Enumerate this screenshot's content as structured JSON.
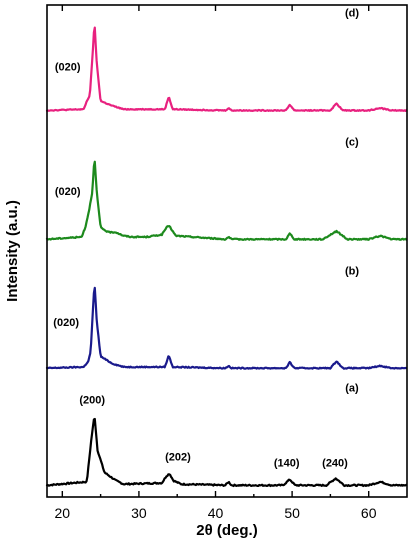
{
  "chart_data": {
    "type": "line",
    "xlabel": "2θ (deg.)",
    "ylabel": "Intensity (a.u.)",
    "xlim": [
      18,
      65
    ],
    "xticks": [
      20,
      30,
      40,
      50,
      60
    ],
    "y_ticks_shown": false,
    "grid": false,
    "legend": "none",
    "series": [
      {
        "label": "(a)",
        "color": "#000000",
        "baseline": 0,
        "noise": 0.6,
        "points": [
          [
            18,
            0
          ],
          [
            23.2,
            3
          ],
          [
            23.8,
            40
          ],
          [
            24.2,
            60
          ],
          [
            24.6,
            30
          ],
          [
            25.5,
            11
          ],
          [
            27,
            4
          ],
          [
            28,
            1
          ],
          [
            33.0,
            2
          ],
          [
            33.6,
            8
          ],
          [
            34.0,
            10
          ],
          [
            34.5,
            4
          ],
          [
            35.5,
            1
          ],
          [
            41.3,
            0
          ],
          [
            41.7,
            3
          ],
          [
            42.1,
            0
          ],
          [
            48.8,
            0
          ],
          [
            49.7,
            5
          ],
          [
            50.4,
            0
          ],
          [
            54.5,
            0
          ],
          [
            55.7,
            6
          ],
          [
            56.8,
            0
          ],
          [
            60,
            0
          ],
          [
            61.5,
            3
          ],
          [
            63,
            0
          ],
          [
            65,
            0
          ]
        ],
        "annotations": [
          {
            "text": "(200)",
            "x": 23.9,
            "y": 70
          },
          {
            "text": "(202)",
            "x": 35.1,
            "y": 21
          },
          {
            "text": "(140)",
            "x": 49.3,
            "y": 16
          },
          {
            "text": "(240)",
            "x": 55.6,
            "y": 16
          }
        ]
      },
      {
        "label": "(b)",
        "color": "#1a1a8c",
        "baseline": 100,
        "noise": 0.45,
        "points": [
          [
            18,
            0
          ],
          [
            22.8,
            1
          ],
          [
            23.4,
            6
          ],
          [
            23.7,
            14
          ],
          [
            24.0,
            50
          ],
          [
            24.2,
            73
          ],
          [
            24.5,
            40
          ],
          [
            25.0,
            10
          ],
          [
            26.5,
            4
          ],
          [
            28,
            1
          ],
          [
            33.4,
            1
          ],
          [
            33.9,
            11
          ],
          [
            34.4,
            1
          ],
          [
            41.3,
            0
          ],
          [
            41.7,
            2
          ],
          [
            42.1,
            0
          ],
          [
            49.2,
            0
          ],
          [
            49.7,
            5
          ],
          [
            50.3,
            0
          ],
          [
            55.0,
            0
          ],
          [
            55.8,
            6
          ],
          [
            56.6,
            0
          ],
          [
            60,
            0
          ],
          [
            61.5,
            2
          ],
          [
            63,
            0
          ],
          [
            65,
            0
          ]
        ],
        "annotations": [
          {
            "text": "(020)",
            "x": 20.5,
            "y": 36
          }
        ]
      },
      {
        "label": "(c)",
        "color": "#1d8a1d",
        "baseline": 210,
        "noise": 0.5,
        "points": [
          [
            18,
            0
          ],
          [
            22.5,
            2
          ],
          [
            23.0,
            10
          ],
          [
            23.5,
            25
          ],
          [
            23.9,
            40
          ],
          [
            24.2,
            70
          ],
          [
            24.5,
            40
          ],
          [
            25.0,
            10
          ],
          [
            26.0,
            6
          ],
          [
            27.0,
            6
          ],
          [
            28.0,
            3
          ],
          [
            29,
            2
          ],
          [
            31,
            2
          ],
          [
            33.0,
            4
          ],
          [
            33.5,
            9
          ],
          [
            33.9,
            12
          ],
          [
            34.3,
            8
          ],
          [
            34.8,
            3
          ],
          [
            41.3,
            0
          ],
          [
            41.7,
            2
          ],
          [
            42.1,
            0
          ],
          [
            49.2,
            0
          ],
          [
            49.7,
            5
          ],
          [
            50.3,
            0
          ],
          [
            54,
            0
          ],
          [
            55.8,
            7
          ],
          [
            57.2,
            0
          ],
          [
            60,
            0
          ],
          [
            61.5,
            3
          ],
          [
            63,
            0
          ],
          [
            65,
            0
          ]
        ],
        "annotations": [
          {
            "text": "(020)",
            "x": 20.7,
            "y": 38
          }
        ]
      },
      {
        "label": "(d)",
        "color": "#e8217f",
        "baseline": 320,
        "noise": 0.4,
        "points": [
          [
            18,
            0
          ],
          [
            22.8,
            1
          ],
          [
            23.2,
            8
          ],
          [
            23.6,
            13
          ],
          [
            24.0,
            53
          ],
          [
            24.2,
            75
          ],
          [
            24.5,
            40
          ],
          [
            25.0,
            8
          ],
          [
            26.5,
            4
          ],
          [
            28,
            1
          ],
          [
            33.4,
            1
          ],
          [
            33.9,
            12
          ],
          [
            34.4,
            1
          ],
          [
            41.3,
            0
          ],
          [
            41.7,
            2
          ],
          [
            42.1,
            0
          ],
          [
            49.2,
            0
          ],
          [
            49.7,
            5
          ],
          [
            50.3,
            0
          ],
          [
            55.0,
            0
          ],
          [
            55.8,
            6
          ],
          [
            56.6,
            0
          ],
          [
            60,
            0
          ],
          [
            61.5,
            2
          ],
          [
            63,
            0
          ],
          [
            65,
            0
          ]
        ],
        "annotations": [
          {
            "text": "(020)",
            "x": 20.7,
            "y": 34
          }
        ]
      }
    ]
  }
}
